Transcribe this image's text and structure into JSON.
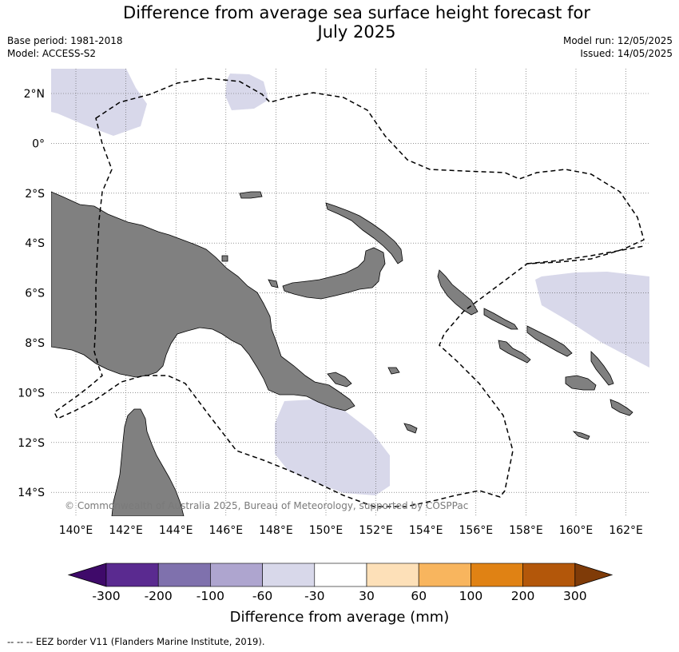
{
  "title_line1": "Difference from average sea surface height forecast for",
  "title_line2": "July 2025",
  "base_period": "Base period: 1981-2018",
  "model": "Model: ACCESS-S2",
  "model_run": "Model run: 12/05/2025",
  "issued": "Issued: 14/05/2025",
  "copyright": "© Commonwealth of Australia 2025, Bureau of Meteorology, supported by COSPPac",
  "lat_labels": [
    "2°N",
    "0°",
    "2°S",
    "4°S",
    "6°S",
    "8°S",
    "10°S",
    "12°S",
    "14°S"
  ],
  "lon_labels": [
    "140°E",
    "142°E",
    "144°E",
    "146°E",
    "148°E",
    "150°E",
    "152°E",
    "154°E",
    "156°E",
    "158°E",
    "160°E",
    "162°E"
  ],
  "colorbar": {
    "title": "Difference from average (mm)",
    "tick_labels": [
      "-300",
      "-200",
      "-100",
      "-60",
      "-30",
      "30",
      "60",
      "100",
      "200",
      "300"
    ],
    "colors": [
      "#3f0a6a",
      "#5a2a90",
      "#7f71ad",
      "#aea5cf",
      "#d8d8ea",
      "#ffffff",
      "#fde0b8",
      "#f8b55e",
      "#e08214",
      "#b3570a",
      "#7f3b08"
    ]
  },
  "fill_colors": {
    "land": "#808080",
    "anomaly_low": "#d8d8ea"
  },
  "footnote": "--  --  -- EEZ border V11 (Flanders Marine Institute, 2019)."
}
